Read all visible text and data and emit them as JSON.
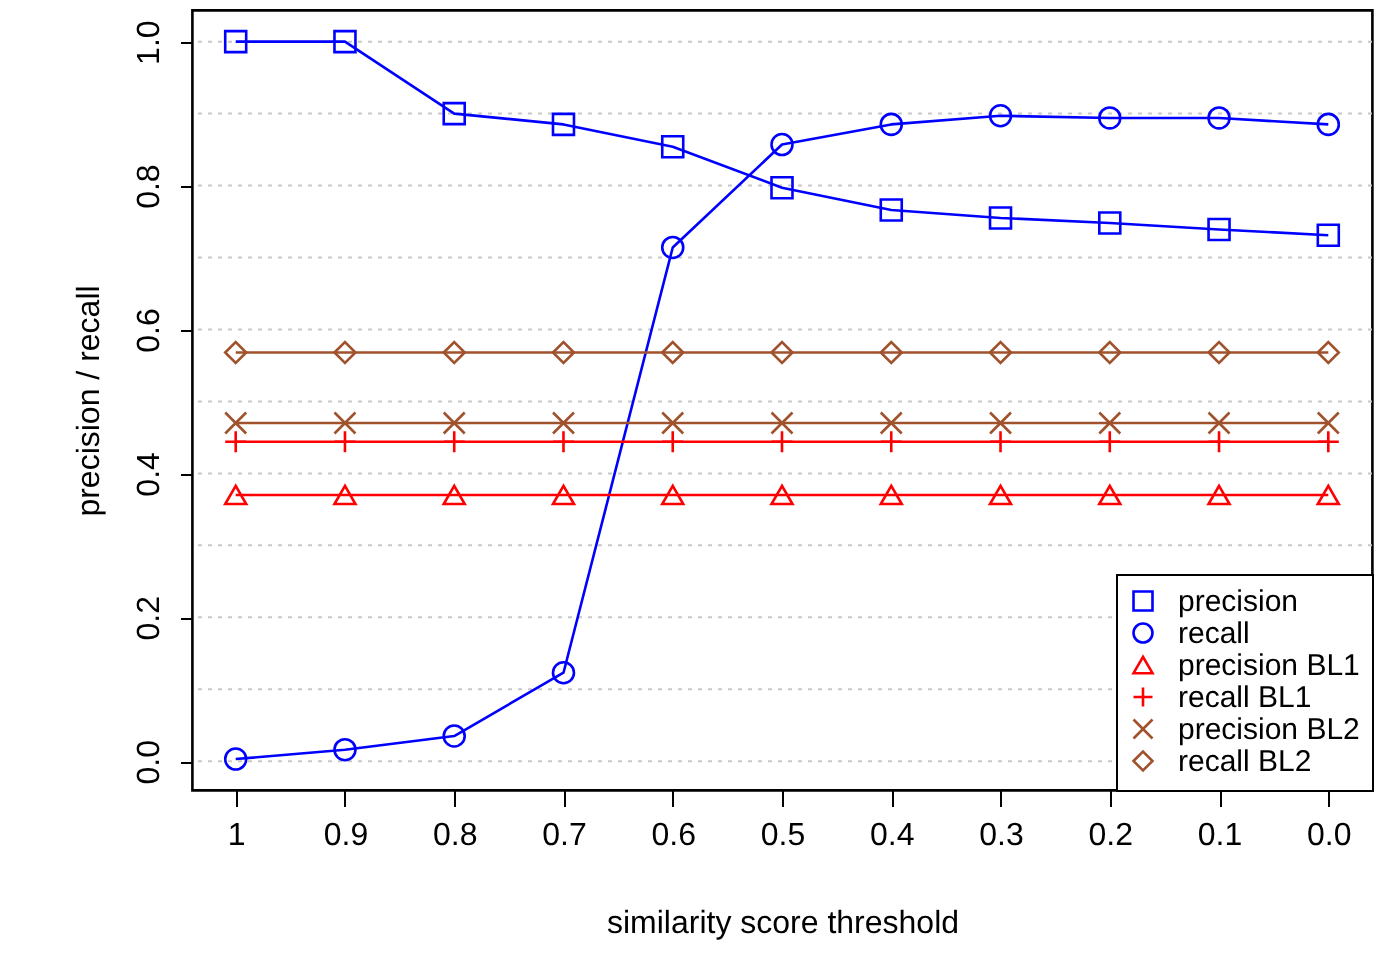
{
  "chart_data": {
    "type": "line",
    "xlabel": "similarity score threshold",
    "ylabel": "precision / recall",
    "categories": [
      "1",
      "0.9",
      "0.8",
      "0.7",
      "0.6",
      "0.5",
      "0.4",
      "0.3",
      "0.2",
      "0.1",
      "0.0"
    ],
    "ylim": [
      -0.04,
      1.044
    ],
    "yticks": [
      {
        "value": 0,
        "label": "0.0"
      },
      {
        "value": 0.1,
        "label": null
      },
      {
        "value": 0.2,
        "label": "0.2"
      },
      {
        "value": 0.3,
        "label": null
      },
      {
        "value": 0.4,
        "label": "0.4"
      },
      {
        "value": 0.5,
        "label": null
      },
      {
        "value": 0.6,
        "label": "0.6"
      },
      {
        "value": 0.7,
        "label": null
      },
      {
        "value": 0.8,
        "label": "0.8"
      },
      {
        "value": 0.9,
        "label": null
      },
      {
        "value": 1,
        "label": "1.0"
      }
    ],
    "grid": "y",
    "legend": "bottom right",
    "line_style": "solid",
    "series": [
      {
        "name": "precision",
        "color": "#0000ff",
        "marker": "square",
        "values": [
          1.0,
          1.0,
          0.9,
          0.885,
          0.854,
          0.797,
          0.766,
          0.755,
          0.748,
          0.739,
          0.731
        ]
      },
      {
        "name": "recall",
        "color": "#0000ff",
        "marker": "circle",
        "values": [
          0.003,
          0.016,
          0.035,
          0.123,
          0.714,
          0.857,
          0.885,
          0.897,
          0.894,
          0.894,
          0.885
        ]
      },
      {
        "name": "precision BL1",
        "color": "#ff0000",
        "marker": "triangle",
        "values": [
          0.37,
          0.37,
          0.37,
          0.37,
          0.37,
          0.37,
          0.37,
          0.37,
          0.37,
          0.37,
          0.37
        ]
      },
      {
        "name": "recall BL1",
        "color": "#ff0000",
        "marker": "plus",
        "values": [
          0.444,
          0.444,
          0.444,
          0.444,
          0.444,
          0.444,
          0.444,
          0.444,
          0.444,
          0.444,
          0.444
        ]
      },
      {
        "name": "precision BL2",
        "color": "#a0522d",
        "marker": "cross",
        "values": [
          0.47,
          0.47,
          0.47,
          0.47,
          0.47,
          0.47,
          0.47,
          0.47,
          0.47,
          0.47,
          0.47
        ]
      },
      {
        "name": "recall BL2",
        "color": "#a0522d",
        "marker": "diamond",
        "values": [
          0.568,
          0.568,
          0.568,
          0.568,
          0.568,
          0.568,
          0.568,
          0.568,
          0.568,
          0.568,
          0.568
        ]
      }
    ]
  }
}
